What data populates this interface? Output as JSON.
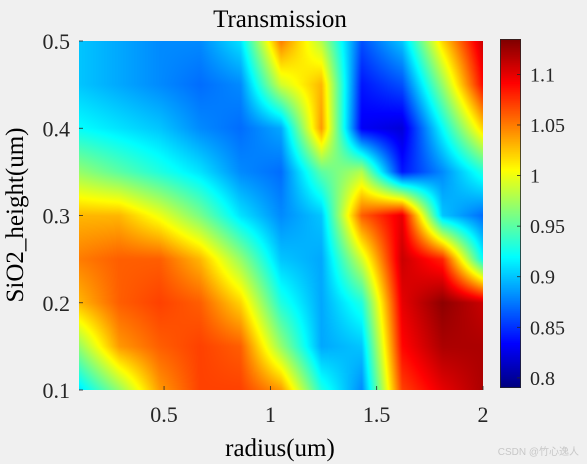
{
  "watermark": "CSDN @竹心逸人",
  "chart_data": {
    "type": "heatmap",
    "title": "Transmission",
    "xlabel": "radius(um)",
    "ylabel": "SiO2_height(um)",
    "xlim": [
      0.1,
      2.0
    ],
    "ylim": [
      0.1,
      0.5
    ],
    "xticks": [
      0.5,
      1,
      1.5,
      2
    ],
    "xtick_labels": [
      "0.5",
      "1",
      "1.5",
      "2"
    ],
    "yticks": [
      0.1,
      0.2,
      0.3,
      0.4,
      0.5
    ],
    "ytick_labels": [
      "0.1",
      "0.2",
      "0.3",
      "0.4",
      "0.5"
    ],
    "colorbar": {
      "colormap": "jet",
      "clim": [
        0.79,
        1.135
      ],
      "ticks": [
        0.8,
        0.85,
        0.9,
        0.95,
        1,
        1.05,
        1.1
      ],
      "tick_labels": [
        "0.8",
        "0.85",
        "0.9",
        "0.95",
        "1",
        "1.05",
        "1.1"
      ]
    },
    "x": [
      0.1,
      0.29,
      0.48,
      0.67,
      0.86,
      1.05,
      1.24,
      1.43,
      1.62,
      1.81,
      2.0
    ],
    "y": [
      0.1,
      0.15,
      0.2,
      0.25,
      0.3,
      0.35,
      0.4,
      0.45,
      0.5
    ],
    "z": [
      [
        0.91,
        0.97,
        1.04,
        1.07,
        1.07,
        1.04,
        0.93,
        0.88,
        1.07,
        1.1,
        1.12
      ],
      [
        0.97,
        1.04,
        1.06,
        1.07,
        1.06,
        0.97,
        0.89,
        0.9,
        1.09,
        1.12,
        1.12
      ],
      [
        1.03,
        1.06,
        1.07,
        1.06,
        1.02,
        0.93,
        0.89,
        0.93,
        1.1,
        1.13,
        1.11
      ],
      [
        1.05,
        1.06,
        1.06,
        1.03,
        0.97,
        0.9,
        0.89,
        0.99,
        1.11,
        1.08,
        0.92
      ],
      [
        1.03,
        1.03,
        1.0,
        0.96,
        0.91,
        0.88,
        0.9,
        1.06,
        1.1,
        0.9,
        0.87
      ],
      [
        0.97,
        0.95,
        0.93,
        0.91,
        0.88,
        0.87,
        0.95,
        0.98,
        0.84,
        0.88,
        0.93
      ],
      [
        0.92,
        0.91,
        0.9,
        0.88,
        0.87,
        0.89,
        1.04,
        0.83,
        0.82,
        0.92,
        1.02
      ],
      [
        0.9,
        0.89,
        0.88,
        0.87,
        0.88,
        0.99,
        1.03,
        0.84,
        0.86,
        0.97,
        1.09
      ],
      [
        0.9,
        0.89,
        0.88,
        0.88,
        0.91,
        1.05,
        0.98,
        0.86,
        0.9,
        1.02,
        1.11
      ]
    ]
  }
}
